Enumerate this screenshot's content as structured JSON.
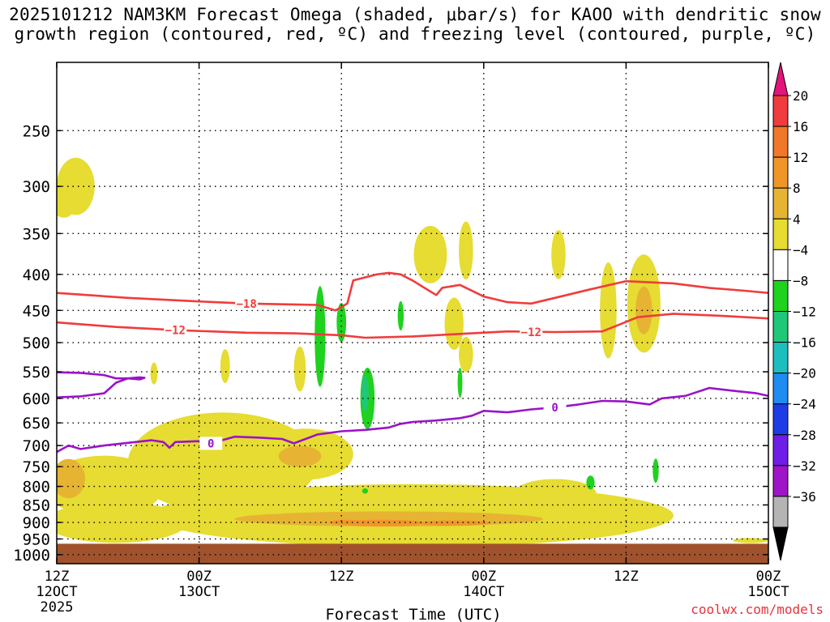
{
  "chart_data": {
    "type": "heatmap",
    "title": "2025101212 NAM3KM Forecast Omega (shaded, μbar/s) for KAOO with dendritic snow",
    "subtitle": "growth region (contoured, red, ºC) and freezing level (contoured, purple, ºC)",
    "xlabel": "Forecast Time (UTC)",
    "x_ticks": [
      {
        "hour": 0,
        "label": "12Z",
        "day": "12OCT",
        "year": "2025"
      },
      {
        "hour": 12,
        "label": "00Z",
        "day": "13OCT",
        "year": ""
      },
      {
        "hour": 24,
        "label": "12Z",
        "day": "",
        "year": ""
      },
      {
        "hour": 36,
        "label": "00Z",
        "day": "14OCT",
        "year": ""
      },
      {
        "hour": 48,
        "label": "12Z",
        "day": "",
        "year": ""
      },
      {
        "hour": 60,
        "label": "00Z",
        "day": "15OCT",
        "year": ""
      }
    ],
    "xlim": [
      0,
      60
    ],
    "y_ticks": [
      250,
      300,
      350,
      400,
      450,
      500,
      550,
      600,
      650,
      700,
      750,
      800,
      850,
      900,
      950,
      1000
    ],
    "ylim": [
      1030,
      200
    ],
    "y_scale": "log-pressure",
    "grid": true,
    "colorbar": {
      "labels": [
        "20",
        "16",
        "12",
        "8",
        "4",
        "-4",
        "-8",
        "-12",
        "-16",
        "-20",
        "-24",
        "-28",
        "-32",
        "-36"
      ],
      "colors": [
        "#e3147a",
        "#f03c3c",
        "#f07828",
        "#f09628",
        "#e6b432",
        "#e6dc32",
        "#ffffff",
        "#1ed21e",
        "#1ec878",
        "#1ebebe",
        "#1e8cf0",
        "#1e3ce6",
        "#6e1ee6",
        "#a014c8",
        "#b4b4b4",
        "#000000"
      ]
    },
    "contours": [
      {
        "kind": "dgz",
        "level": "-18",
        "color": "#f03c3c",
        "points": [
          [
            0,
            425
          ],
          [
            6,
            432
          ],
          [
            12,
            437
          ],
          [
            16,
            440
          ],
          [
            22,
            442
          ],
          [
            23.5,
            450
          ],
          [
            24.5,
            440
          ],
          [
            25,
            408
          ],
          [
            27,
            400
          ],
          [
            28,
            398
          ],
          [
            29,
            400
          ],
          [
            30,
            408
          ],
          [
            31,
            418
          ],
          [
            32,
            428
          ],
          [
            32.5,
            418
          ],
          [
            34,
            414
          ],
          [
            36,
            430
          ],
          [
            38,
            438
          ],
          [
            40,
            440
          ],
          [
            42,
            432
          ],
          [
            45,
            420
          ],
          [
            48,
            409
          ],
          [
            52,
            412
          ],
          [
            55,
            418
          ],
          [
            58,
            422
          ],
          [
            60,
            425
          ]
        ],
        "labels": [
          [
            16,
            440
          ]
        ]
      },
      {
        "kind": "dgz",
        "level": "-12",
        "color": "#f03c3c",
        "points": [
          [
            0,
            468
          ],
          [
            5,
            475
          ],
          [
            10,
            480
          ],
          [
            16,
            484
          ],
          [
            20,
            485
          ],
          [
            24,
            488
          ],
          [
            26,
            492
          ],
          [
            30,
            490
          ],
          [
            34,
            486
          ],
          [
            38,
            482
          ],
          [
            42,
            483
          ],
          [
            46,
            482
          ],
          [
            49,
            460
          ],
          [
            52,
            455
          ],
          [
            56,
            458
          ],
          [
            60,
            462
          ]
        ],
        "labels": [
          [
            10,
            480
          ],
          [
            40,
            483
          ]
        ]
      },
      {
        "kind": "freezing",
        "level": "0",
        "color": "#9a14c8",
        "points": [
          [
            0,
            715
          ],
          [
            1,
            700
          ],
          [
            2,
            708
          ],
          [
            4,
            700
          ],
          [
            8,
            688
          ],
          [
            9,
            692
          ],
          [
            9.5,
            705
          ],
          [
            10,
            692
          ],
          [
            12,
            690
          ],
          [
            13,
            695
          ],
          [
            15,
            680
          ],
          [
            17,
            682
          ],
          [
            19,
            685
          ],
          [
            20,
            695
          ],
          [
            22,
            675
          ],
          [
            24,
            668
          ],
          [
            26,
            665
          ],
          [
            28,
            660
          ],
          [
            29,
            652
          ],
          [
            30,
            648
          ],
          [
            32,
            645
          ],
          [
            34,
            640
          ],
          [
            35,
            635
          ],
          [
            36,
            625
          ],
          [
            38,
            628
          ],
          [
            40,
            622
          ],
          [
            42,
            618
          ],
          [
            44,
            612
          ],
          [
            46,
            605
          ],
          [
            48,
            606
          ],
          [
            50,
            612
          ],
          [
            51,
            600
          ],
          [
            53,
            595
          ],
          [
            55,
            580
          ],
          [
            57,
            585
          ],
          [
            59,
            590
          ],
          [
            60,
            595
          ]
        ],
        "labels": [
          [
            13,
            695
          ],
          [
            42,
            618
          ]
        ]
      },
      {
        "kind": "freezing",
        "level": "",
        "color": "#9a14c8",
        "points": [
          [
            0,
            551
          ],
          [
            2,
            552
          ],
          [
            4,
            556
          ],
          [
            5,
            562
          ],
          [
            6,
            562
          ],
          [
            7,
            560
          ],
          [
            7.4,
            561
          ],
          [
            7,
            564
          ],
          [
            6,
            562
          ],
          [
            5,
            570
          ],
          [
            4,
            590
          ],
          [
            2,
            596
          ],
          [
            0,
            598
          ]
        ],
        "labels": []
      }
    ],
    "shaded_regions": [
      {
        "level": "4",
        "x": 1.6,
        "y": 300,
        "rx": 1.6,
        "ry": 28
      },
      {
        "level": "4",
        "x": 0.6,
        "y": 318,
        "rx": 1.0,
        "ry": 14
      },
      {
        "level": "4",
        "x": 14.0,
        "y": 740,
        "rx": 8.0,
        "ry": 120
      },
      {
        "level": "4",
        "x": 30.0,
        "y": 880,
        "rx": 22.0,
        "ry": 90
      },
      {
        "level": "4",
        "x": 4.0,
        "y": 800,
        "rx": 5.0,
        "ry": 80
      },
      {
        "level": "4",
        "x": 21.0,
        "y": 720,
        "rx": 4.0,
        "ry": 60
      },
      {
        "level": "4",
        "x": 31.5,
        "y": 375,
        "rx": 1.4,
        "ry": 35
      },
      {
        "level": "4",
        "x": 46.5,
        "y": 450,
        "rx": 0.7,
        "ry": 70
      },
      {
        "level": "4",
        "x": 49.5,
        "y": 440,
        "rx": 1.4,
        "ry": 70
      },
      {
        "level": "4",
        "x": 34.5,
        "y": 370,
        "rx": 0.6,
        "ry": 35
      },
      {
        "level": "4",
        "x": 42.3,
        "y": 375,
        "rx": 0.6,
        "ry": 30
      },
      {
        "level": "4",
        "x": 20.5,
        "y": 545,
        "rx": 0.5,
        "ry": 40
      },
      {
        "level": "4",
        "x": 14.2,
        "y": 540,
        "rx": 0.4,
        "ry": 30
      },
      {
        "level": "4",
        "x": 42.0,
        "y": 820,
        "rx": 3.5,
        "ry": 40
      },
      {
        "level": "4",
        "x": 48.0,
        "y": 880,
        "rx": 3.5,
        "ry": 40
      },
      {
        "level": "4",
        "x": 8.2,
        "y": 553,
        "rx": 0.3,
        "ry": 20
      },
      {
        "level": "4",
        "x": 33.5,
        "y": 470,
        "rx": 0.8,
        "ry": 40
      },
      {
        "level": "4",
        "x": 34.5,
        "y": 520,
        "rx": 0.6,
        "ry": 30
      },
      {
        "level": "4",
        "x": 5.0,
        "y": 900,
        "rx": 6.0,
        "ry": 60
      },
      {
        "level": "4",
        "x": 58.5,
        "y": 955,
        "rx": 1.5,
        "ry": 8
      },
      {
        "level": "8",
        "x": 1.0,
        "y": 780,
        "rx": 1.4,
        "ry": 50
      },
      {
        "level": "8",
        "x": 20.5,
        "y": 725,
        "rx": 1.8,
        "ry": 25
      },
      {
        "level": "8",
        "x": 28.0,
        "y": 890,
        "rx": 13.0,
        "ry": 22
      },
      {
        "level": "8",
        "x": 49.5,
        "y": 450,
        "rx": 0.7,
        "ry": 35
      },
      {
        "level": "12",
        "x": 27.5,
        "y": 902,
        "rx": 3.5,
        "ry": 10
      },
      {
        "level": "12",
        "x": 33.5,
        "y": 902,
        "rx": 3.0,
        "ry": 8
      },
      {
        "level": "12",
        "x": 24.5,
        "y": 900,
        "rx": 1.5,
        "ry": 8
      },
      {
        "level": "-4",
        "x": 22.2,
        "y": 490,
        "rx": 0.45,
        "ry": 80
      },
      {
        "level": "-4",
        "x": 24.0,
        "y": 468,
        "rx": 0.4,
        "ry": 30
      },
      {
        "level": "-4",
        "x": 26.2,
        "y": 600,
        "rx": 0.6,
        "ry": 60
      },
      {
        "level": "-4",
        "x": 29.0,
        "y": 458,
        "rx": 0.25,
        "ry": 22
      },
      {
        "level": "-4",
        "x": 34.0,
        "y": 570,
        "rx": 0.2,
        "ry": 28
      },
      {
        "level": "-4",
        "x": 45.0,
        "y": 790,
        "rx": 0.35,
        "ry": 18
      },
      {
        "level": "-4",
        "x": 50.5,
        "y": 760,
        "rx": 0.25,
        "ry": 30
      },
      {
        "level": "-4",
        "x": 26.0,
        "y": 812,
        "rx": 0.25,
        "ry": 7
      },
      {
        "level": "-8",
        "x": 26.0,
        "y": 590,
        "rx": 0.3,
        "ry": 35
      }
    ],
    "ground_color": "#a0522d",
    "ground_top": 965
  },
  "credit": "coolwx.com/models"
}
